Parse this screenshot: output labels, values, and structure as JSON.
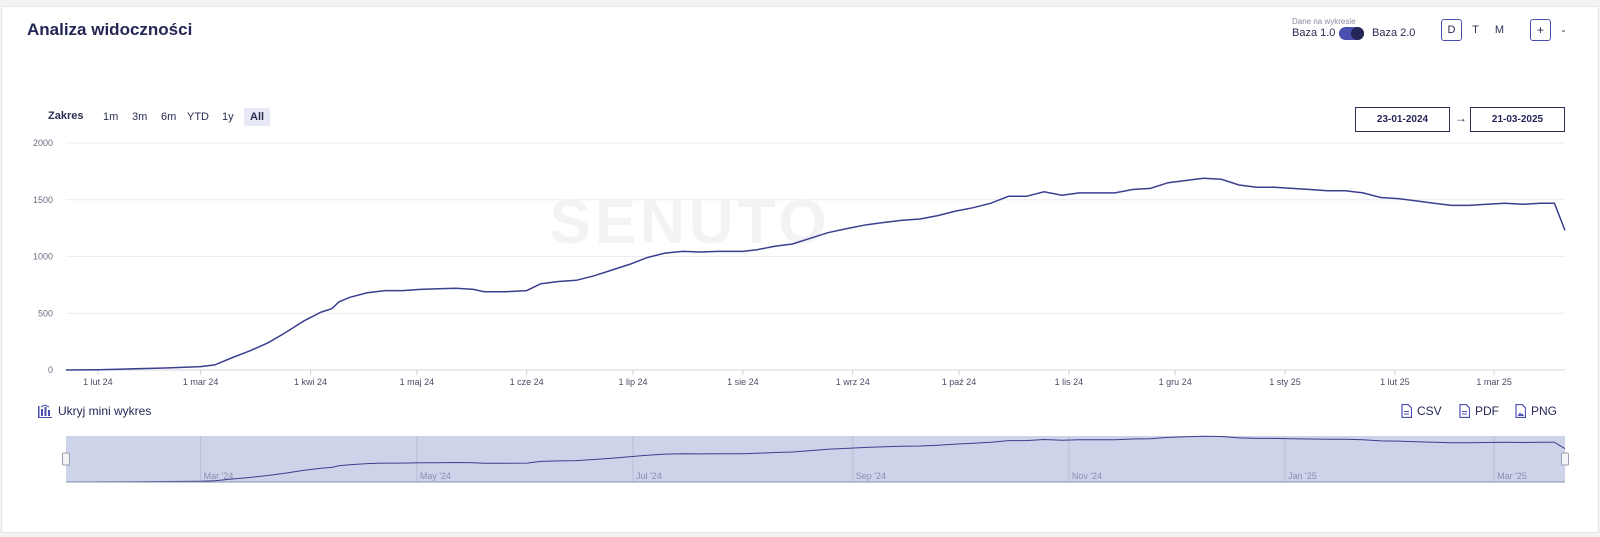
{
  "header": {
    "title": "Analiza widoczności",
    "data_on_chart_label": "Dane na wykresie",
    "base1_label": "Baza 1.0",
    "base2_label": "Baza 2.0",
    "toggle_on": true,
    "granularity": [
      {
        "label": "D",
        "active": true
      },
      {
        "label": "T",
        "active": false
      },
      {
        "label": "M",
        "active": false
      }
    ],
    "zoom_in_label": "+",
    "zoom_out_label": "-"
  },
  "range": {
    "label": "Zakres",
    "buttons": [
      {
        "label": "1m",
        "active": false
      },
      {
        "label": "3m",
        "active": false
      },
      {
        "label": "6m",
        "active": false
      },
      {
        "label": "YTD",
        "active": false
      },
      {
        "label": "1y",
        "active": false
      },
      {
        "label": "All",
        "active": true
      }
    ],
    "date_from": "23-01-2024",
    "date_arrow": "→",
    "date_to": "21-03-2025"
  },
  "watermark": "SENUTO",
  "chart_data": {
    "type": "line",
    "title": "",
    "xlabel": "",
    "ylabel": "",
    "ylim": [
      0,
      2000
    ],
    "yticks": [
      0,
      500,
      1000,
      1500,
      2000
    ],
    "xlim": [
      "2024-01-23",
      "2025-03-21"
    ],
    "xticks": [
      {
        "date": "2024-02-01",
        "label": "1 lut 24"
      },
      {
        "date": "2024-03-01",
        "label": "1 mar 24"
      },
      {
        "date": "2024-04-01",
        "label": "1 kwi 24"
      },
      {
        "date": "2024-05-01",
        "label": "1 maj 24"
      },
      {
        "date": "2024-06-01",
        "label": "1 cze 24"
      },
      {
        "date": "2024-07-01",
        "label": "1 lip 24"
      },
      {
        "date": "2024-08-01",
        "label": "1 sie 24"
      },
      {
        "date": "2024-09-01",
        "label": "1 wrz 24"
      },
      {
        "date": "2024-10-01",
        "label": "1 paź 24"
      },
      {
        "date": "2024-11-01",
        "label": "1 lis 24"
      },
      {
        "date": "2024-12-01",
        "label": "1 gru 24"
      },
      {
        "date": "2025-01-01",
        "label": "1 sty 25"
      },
      {
        "date": "2025-02-01",
        "label": "1 lut 25"
      },
      {
        "date": "2025-03-01",
        "label": "1 mar 25"
      }
    ],
    "grid": true,
    "line_color": "#3b3f8f",
    "series": [
      {
        "points": [
          [
            "2024-01-23",
            0
          ],
          [
            "2024-02-01",
            3
          ],
          [
            "2024-02-10",
            10
          ],
          [
            "2024-02-20",
            18
          ],
          [
            "2024-03-01",
            30
          ],
          [
            "2024-03-05",
            45
          ],
          [
            "2024-03-10",
            110
          ],
          [
            "2024-03-15",
            170
          ],
          [
            "2024-03-20",
            240
          ],
          [
            "2024-03-25",
            330
          ],
          [
            "2024-03-30",
            430
          ],
          [
            "2024-04-04",
            510
          ],
          [
            "2024-04-07",
            540
          ],
          [
            "2024-04-09",
            600
          ],
          [
            "2024-04-12",
            640
          ],
          [
            "2024-04-17",
            680
          ],
          [
            "2024-04-22",
            700
          ],
          [
            "2024-04-27",
            700
          ],
          [
            "2024-05-02",
            710
          ],
          [
            "2024-05-07",
            715
          ],
          [
            "2024-05-12",
            720
          ],
          [
            "2024-05-17",
            710
          ],
          [
            "2024-05-20",
            690
          ],
          [
            "2024-05-26",
            690
          ],
          [
            "2024-06-01",
            700
          ],
          [
            "2024-06-05",
            760
          ],
          [
            "2024-06-10",
            780
          ],
          [
            "2024-06-15",
            790
          ],
          [
            "2024-06-20",
            830
          ],
          [
            "2024-06-25",
            880
          ],
          [
            "2024-06-30",
            930
          ],
          [
            "2024-07-05",
            990
          ],
          [
            "2024-07-10",
            1030
          ],
          [
            "2024-07-15",
            1045
          ],
          [
            "2024-07-20",
            1040
          ],
          [
            "2024-07-25",
            1045
          ],
          [
            "2024-08-01",
            1045
          ],
          [
            "2024-08-05",
            1060
          ],
          [
            "2024-08-10",
            1090
          ],
          [
            "2024-08-15",
            1110
          ],
          [
            "2024-08-20",
            1160
          ],
          [
            "2024-08-25",
            1210
          ],
          [
            "2024-08-31",
            1250
          ],
          [
            "2024-09-05",
            1280
          ],
          [
            "2024-09-10",
            1300
          ],
          [
            "2024-09-15",
            1320
          ],
          [
            "2024-09-20",
            1330
          ],
          [
            "2024-09-25",
            1360
          ],
          [
            "2024-09-30",
            1400
          ],
          [
            "2024-10-05",
            1430
          ],
          [
            "2024-10-10",
            1470
          ],
          [
            "2024-10-15",
            1530
          ],
          [
            "2024-10-20",
            1530
          ],
          [
            "2024-10-25",
            1570
          ],
          [
            "2024-10-30",
            1540
          ],
          [
            "2024-11-04",
            1560
          ],
          [
            "2024-11-09",
            1560
          ],
          [
            "2024-11-14",
            1560
          ],
          [
            "2024-11-19",
            1590
          ],
          [
            "2024-11-24",
            1600
          ],
          [
            "2024-11-29",
            1650
          ],
          [
            "2024-12-04",
            1670
          ],
          [
            "2024-12-09",
            1690
          ],
          [
            "2024-12-14",
            1680
          ],
          [
            "2024-12-19",
            1630
          ],
          [
            "2024-12-24",
            1610
          ],
          [
            "2024-12-29",
            1610
          ],
          [
            "2025-01-03",
            1600
          ],
          [
            "2025-01-08",
            1590
          ],
          [
            "2025-01-13",
            1580
          ],
          [
            "2025-01-18",
            1580
          ],
          [
            "2025-01-23",
            1560
          ],
          [
            "2025-01-28",
            1520
          ],
          [
            "2025-02-02",
            1510
          ],
          [
            "2025-02-07",
            1490
          ],
          [
            "2025-02-12",
            1470
          ],
          [
            "2025-02-17",
            1450
          ],
          [
            "2025-02-22",
            1450
          ],
          [
            "2025-02-27",
            1460
          ],
          [
            "2025-03-04",
            1470
          ],
          [
            "2025-03-09",
            1460
          ],
          [
            "2025-03-14",
            1470
          ],
          [
            "2025-03-18",
            1470
          ],
          [
            "2025-03-21",
            1230
          ]
        ]
      }
    ],
    "navigator": {
      "labels": [
        {
          "date": "2024-03-01",
          "label": "Mar '24"
        },
        {
          "date": "2024-05-01",
          "label": "May '24"
        },
        {
          "date": "2024-07-01",
          "label": "Jul '24"
        },
        {
          "date": "2024-09-01",
          "label": "Sep '24"
        },
        {
          "date": "2024-11-01",
          "label": "Nov '24"
        },
        {
          "date": "2025-01-01",
          "label": "Jan '25"
        },
        {
          "date": "2025-03-01",
          "label": "Mar '25"
        }
      ]
    }
  },
  "footer": {
    "hide_mini_label": "Ukryj mini wykres",
    "csv_label": "CSV",
    "pdf_label": "PDF",
    "png_label": "PNG"
  }
}
